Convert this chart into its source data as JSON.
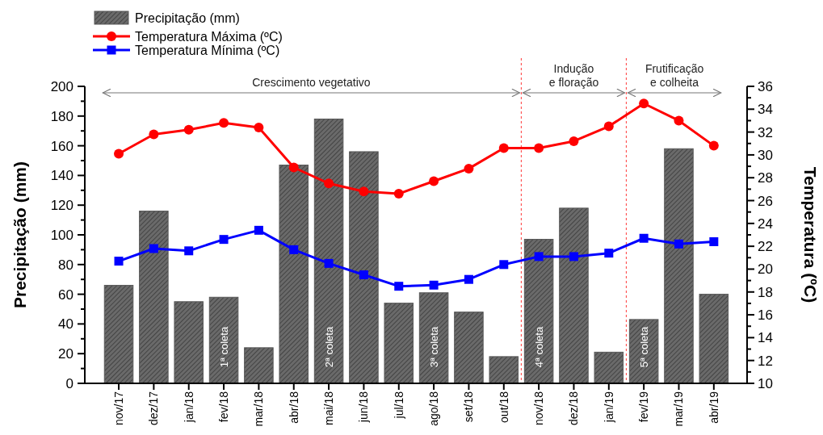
{
  "chart_data": {
    "type": "bar",
    "ylabel": "Precipitação (mm)",
    "y2label": "Temperatura (ºC)",
    "categories": [
      "nov/17",
      "dez/17",
      "jan/18",
      "fev/18",
      "mar/18",
      "abr/18",
      "mai/18",
      "jun/18",
      "jul/18",
      "ago/18",
      "set/18",
      "out/18",
      "nov/18",
      "dez/18",
      "jan/19",
      "fev/19",
      "mar/19",
      "abr/19"
    ],
    "ylim": [
      0,
      200
    ],
    "yticks": [
      0,
      {
        "value": 10,
        "label": null
      },
      20,
      {
        "value": 30,
        "label": null
      },
      40,
      {
        "value": 50,
        "label": null
      },
      60,
      {
        "value": 70,
        "label": null
      },
      80,
      {
        "value": 90,
        "label": null
      },
      100,
      {
        "value": 110,
        "label": null
      },
      120,
      {
        "value": 130,
        "label": null
      },
      140,
      {
        "value": 150,
        "label": null
      },
      160,
      {
        "value": 170,
        "label": null
      },
      180,
      {
        "value": 190,
        "label": null
      },
      200
    ],
    "y2lim": [
      10,
      36
    ],
    "y2ticks": [
      10,
      {
        "value": 11,
        "label": null
      },
      12,
      {
        "value": 13,
        "label": null
      },
      14,
      {
        "value": 15,
        "label": null
      },
      16,
      {
        "value": 17,
        "label": null
      },
      18,
      {
        "value": 19,
        "label": null
      },
      20,
      {
        "value": 21,
        "label": null
      },
      22,
      {
        "value": 23,
        "label": null
      },
      24,
      {
        "value": 25,
        "label": null
      },
      26,
      {
        "value": 27,
        "label": null
      },
      28,
      {
        "value": 29,
        "label": null
      },
      30,
      {
        "value": 31,
        "label": null
      },
      32,
      {
        "value": 33,
        "label": null
      },
      34,
      {
        "value": 35,
        "label": null
      },
      36
    ],
    "series": [
      {
        "name": "Precipitação (mm)",
        "color": "#595959",
        "values": [
          66,
          116,
          55,
          58,
          24,
          147,
          178,
          156,
          54,
          61,
          48,
          18,
          97,
          118,
          21,
          43,
          158,
          60
        ]
      },
      {
        "name": "Temperatura Máxima (ºC)",
        "type": "line",
        "axis": "y2",
        "color": "#ff0000",
        "marker": "circle",
        "values": [
          30.1,
          31.8,
          32.2,
          32.8,
          32.4,
          28.9,
          27.5,
          26.8,
          26.6,
          27.7,
          28.8,
          30.6,
          30.6,
          31.2,
          32.5,
          34.5,
          33.0,
          30.8
        ]
      },
      {
        "name": "Temperatura Mínima (ºC)",
        "type": "line",
        "axis": "y2",
        "color": "#0000ff",
        "marker": "square",
        "values": [
          20.7,
          21.8,
          21.6,
          22.6,
          23.4,
          21.7,
          20.5,
          19.5,
          18.5,
          18.6,
          19.1,
          20.4,
          21.1,
          21.1,
          21.4,
          22.7,
          22.2,
          22.4
        ]
      }
    ],
    "annotations": [
      "Crescimento vegetativo",
      "Indução\ne floração",
      "Frutificação\ne colheita",
      "1ª coleta",
      "2ª coleta",
      "3ª coleta",
      "4ª coleta",
      "5ª coleta"
    ],
    "legend": "top left"
  }
}
